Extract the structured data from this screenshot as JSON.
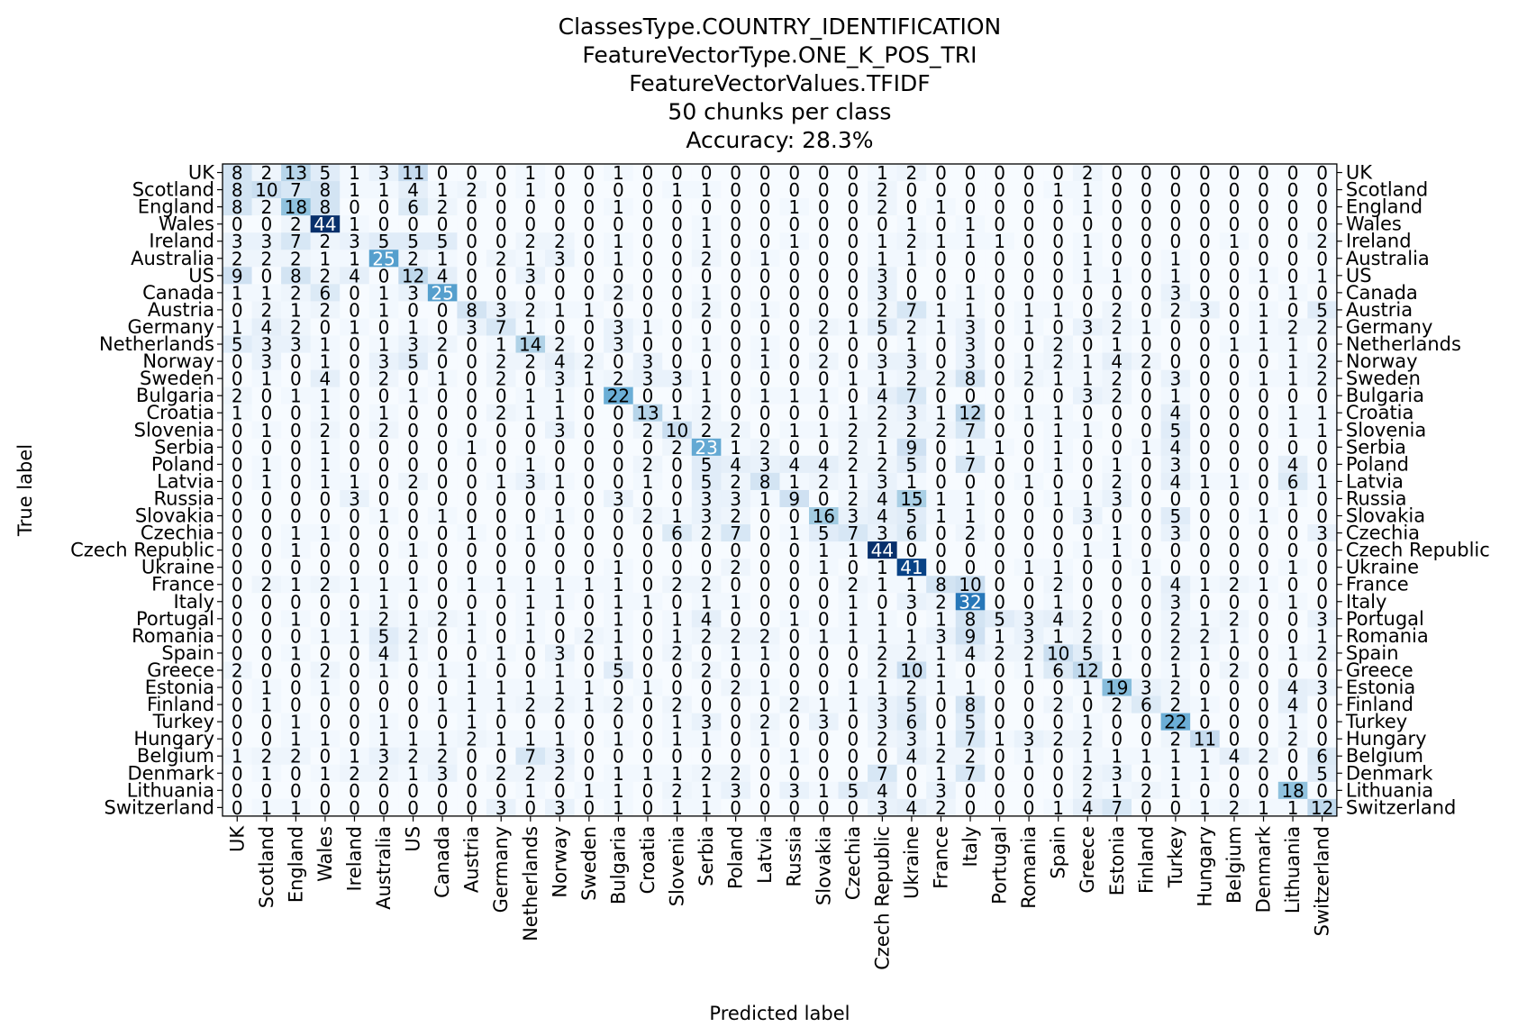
{
  "chart_data": {
    "type": "heatmap",
    "title": [
      "ClassesType.COUNTRY_IDENTIFICATION",
      "FeatureVectorType.ONE_K_POS_TRI",
      "FeatureVectorValues.TFIDF",
      "50 chunks per class",
      "Accuracy: 28.3%"
    ],
    "xlabel": "Predicted label",
    "ylabel": "True label",
    "colormap": "Blues",
    "vmin": 0,
    "vmax": 44,
    "labels": [
      "UK",
      "Scotland",
      "England",
      "Wales",
      "Ireland",
      "Australia",
      "US",
      "Canada",
      "Austria",
      "Germany",
      "Netherlands",
      "Norway",
      "Sweden",
      "Bulgaria",
      "Croatia",
      "Slovenia",
      "Serbia",
      "Poland",
      "Latvia",
      "Russia",
      "Slovakia",
      "Czechia",
      "Czech Republic",
      "Ukraine",
      "France",
      "Italy",
      "Portugal",
      "Romania",
      "Spain",
      "Greece",
      "Estonia",
      "Finland",
      "Turkey",
      "Hungary",
      "Belgium",
      "Denmark",
      "Lithuania",
      "Switzerland"
    ],
    "matrix": [
      [
        8,
        2,
        13,
        5,
        1,
        3,
        11,
        0,
        0,
        0,
        1,
        0,
        0,
        1,
        0,
        0,
        0,
        0,
        0,
        0,
        0,
        0,
        1,
        2,
        0,
        0,
        0,
        0,
        0,
        2,
        0,
        0,
        0,
        0,
        0,
        0,
        0,
        0
      ],
      [
        8,
        10,
        7,
        8,
        1,
        1,
        4,
        1,
        2,
        0,
        1,
        0,
        0,
        0,
        0,
        1,
        1,
        0,
        0,
        0,
        0,
        0,
        2,
        0,
        0,
        0,
        0,
        0,
        1,
        1,
        0,
        0,
        0,
        0,
        0,
        0,
        0,
        0
      ],
      [
        8,
        2,
        18,
        8,
        0,
        0,
        6,
        2,
        0,
        0,
        0,
        0,
        0,
        1,
        0,
        0,
        0,
        0,
        0,
        1,
        0,
        0,
        2,
        0,
        1,
        0,
        0,
        0,
        0,
        1,
        0,
        0,
        0,
        0,
        0,
        0,
        0,
        0
      ],
      [
        0,
        0,
        2,
        44,
        1,
        0,
        0,
        0,
        0,
        0,
        0,
        0,
        0,
        0,
        0,
        0,
        1,
        0,
        0,
        0,
        0,
        0,
        0,
        1,
        0,
        1,
        0,
        0,
        0,
        0,
        0,
        0,
        0,
        0,
        0,
        0,
        0,
        0
      ],
      [
        3,
        3,
        7,
        2,
        3,
        5,
        5,
        5,
        0,
        0,
        2,
        2,
        0,
        1,
        0,
        0,
        1,
        0,
        0,
        1,
        0,
        0,
        1,
        2,
        1,
        1,
        1,
        0,
        0,
        1,
        0,
        0,
        0,
        0,
        1,
        0,
        0,
        2
      ],
      [
        2,
        2,
        2,
        1,
        1,
        25,
        2,
        1,
        0,
        2,
        1,
        3,
        0,
        1,
        0,
        0,
        2,
        0,
        1,
        0,
        0,
        0,
        1,
        1,
        0,
        0,
        0,
        0,
        0,
        1,
        0,
        0,
        1,
        0,
        0,
        0,
        0,
        0
      ],
      [
        9,
        0,
        8,
        2,
        4,
        0,
        12,
        4,
        0,
        0,
        3,
        0,
        0,
        0,
        0,
        0,
        0,
        0,
        0,
        0,
        0,
        0,
        3,
        0,
        0,
        0,
        0,
        0,
        0,
        1,
        1,
        0,
        1,
        0,
        0,
        1,
        0,
        1
      ],
      [
        1,
        1,
        2,
        6,
        0,
        1,
        3,
        25,
        0,
        0,
        0,
        0,
        0,
        2,
        0,
        0,
        1,
        0,
        0,
        0,
        0,
        0,
        3,
        0,
        0,
        1,
        0,
        0,
        0,
        0,
        0,
        0,
        3,
        0,
        0,
        0,
        1,
        0
      ],
      [
        0,
        2,
        1,
        2,
        0,
        1,
        0,
        0,
        8,
        3,
        2,
        1,
        1,
        0,
        0,
        0,
        2,
        0,
        1,
        0,
        0,
        0,
        2,
        7,
        1,
        1,
        0,
        1,
        1,
        0,
        2,
        0,
        2,
        3,
        0,
        1,
        0,
        5
      ],
      [
        1,
        4,
        2,
        0,
        1,
        0,
        1,
        0,
        3,
        7,
        1,
        0,
        0,
        3,
        1,
        0,
        0,
        0,
        0,
        0,
        2,
        1,
        5,
        2,
        1,
        3,
        0,
        1,
        0,
        3,
        2,
        1,
        0,
        0,
        0,
        1,
        2,
        2
      ],
      [
        5,
        3,
        3,
        1,
        0,
        1,
        3,
        2,
        0,
        1,
        14,
        2,
        0,
        3,
        0,
        0,
        1,
        0,
        1,
        0,
        0,
        0,
        0,
        1,
        0,
        3,
        0,
        0,
        2,
        0,
        1,
        0,
        0,
        0,
        1,
        1,
        1,
        0
      ],
      [
        0,
        3,
        0,
        1,
        0,
        3,
        5,
        0,
        0,
        2,
        2,
        4,
        2,
        0,
        3,
        0,
        0,
        0,
        1,
        0,
        2,
        0,
        3,
        3,
        0,
        3,
        0,
        1,
        2,
        1,
        4,
        2,
        0,
        0,
        0,
        0,
        1,
        2
      ],
      [
        0,
        1,
        0,
        4,
        0,
        2,
        0,
        1,
        0,
        2,
        0,
        3,
        1,
        2,
        3,
        3,
        1,
        0,
        0,
        0,
        0,
        1,
        1,
        2,
        2,
        8,
        0,
        2,
        1,
        1,
        2,
        0,
        3,
        0,
        0,
        1,
        1,
        2
      ],
      [
        2,
        0,
        1,
        1,
        0,
        0,
        1,
        0,
        0,
        0,
        1,
        1,
        0,
        22,
        0,
        0,
        1,
        0,
        1,
        1,
        1,
        0,
        4,
        7,
        0,
        0,
        0,
        0,
        0,
        3,
        2,
        0,
        1,
        0,
        0,
        0,
        0,
        0
      ],
      [
        1,
        0,
        0,
        1,
        0,
        1,
        0,
        0,
        0,
        2,
        1,
        1,
        0,
        0,
        13,
        1,
        2,
        0,
        0,
        0,
        0,
        1,
        2,
        3,
        1,
        12,
        0,
        1,
        1,
        0,
        0,
        0,
        4,
        0,
        0,
        0,
        1,
        1
      ],
      [
        0,
        1,
        0,
        2,
        0,
        2,
        0,
        0,
        0,
        0,
        0,
        3,
        0,
        0,
        2,
        10,
        2,
        2,
        0,
        1,
        1,
        2,
        2,
        2,
        2,
        7,
        0,
        0,
        1,
        1,
        0,
        0,
        5,
        0,
        0,
        0,
        1,
        1
      ],
      [
        0,
        0,
        0,
        1,
        0,
        0,
        0,
        0,
        1,
        0,
        0,
        0,
        0,
        0,
        0,
        2,
        23,
        1,
        2,
        0,
        0,
        2,
        1,
        9,
        0,
        1,
        1,
        0,
        1,
        0,
        0,
        1,
        4,
        0,
        0,
        0,
        0,
        0
      ],
      [
        0,
        1,
        0,
        1,
        0,
        0,
        0,
        0,
        0,
        0,
        1,
        0,
        0,
        0,
        2,
        0,
        5,
        4,
        3,
        4,
        4,
        2,
        2,
        5,
        0,
        7,
        0,
        0,
        1,
        0,
        1,
        0,
        3,
        0,
        0,
        0,
        4,
        0
      ],
      [
        0,
        1,
        0,
        1,
        1,
        0,
        2,
        0,
        0,
        1,
        3,
        1,
        0,
        0,
        1,
        0,
        5,
        2,
        8,
        1,
        2,
        1,
        3,
        1,
        0,
        0,
        0,
        1,
        0,
        0,
        2,
        0,
        4,
        1,
        1,
        0,
        6,
        1
      ],
      [
        0,
        0,
        0,
        0,
        3,
        0,
        0,
        0,
        0,
        0,
        0,
        0,
        0,
        3,
        0,
        0,
        3,
        3,
        1,
        9,
        0,
        2,
        4,
        15,
        1,
        1,
        0,
        0,
        1,
        1,
        3,
        0,
        0,
        0,
        0,
        0,
        1,
        0
      ],
      [
        0,
        0,
        0,
        0,
        0,
        1,
        0,
        1,
        0,
        0,
        0,
        1,
        0,
        0,
        2,
        1,
        3,
        2,
        0,
        0,
        16,
        3,
        4,
        5,
        1,
        1,
        0,
        0,
        0,
        3,
        0,
        0,
        5,
        0,
        0,
        1,
        0,
        0
      ],
      [
        0,
        0,
        1,
        1,
        0,
        0,
        0,
        0,
        1,
        0,
        1,
        0,
        0,
        0,
        0,
        6,
        2,
        7,
        0,
        1,
        5,
        7,
        3,
        6,
        0,
        2,
        0,
        0,
        0,
        0,
        1,
        0,
        3,
        0,
        0,
        0,
        0,
        3
      ],
      [
        0,
        0,
        1,
        0,
        0,
        0,
        1,
        0,
        0,
        0,
        0,
        0,
        0,
        0,
        0,
        0,
        0,
        0,
        0,
        0,
        1,
        1,
        44,
        0,
        0,
        0,
        0,
        0,
        0,
        1,
        1,
        0,
        0,
        0,
        0,
        0,
        0,
        0
      ],
      [
        0,
        0,
        0,
        0,
        0,
        0,
        0,
        0,
        0,
        0,
        0,
        0,
        0,
        1,
        0,
        0,
        0,
        2,
        0,
        0,
        1,
        0,
        1,
        41,
        0,
        0,
        0,
        1,
        1,
        0,
        0,
        1,
        0,
        0,
        0,
        0,
        1,
        0
      ],
      [
        0,
        2,
        1,
        2,
        1,
        1,
        1,
        0,
        1,
        1,
        1,
        1,
        1,
        1,
        0,
        2,
        2,
        0,
        0,
        0,
        0,
        2,
        1,
        1,
        8,
        10,
        0,
        0,
        2,
        0,
        0,
        0,
        4,
        1,
        2,
        1,
        0,
        0
      ],
      [
        0,
        0,
        0,
        0,
        0,
        1,
        0,
        0,
        0,
        0,
        1,
        1,
        0,
        1,
        1,
        0,
        1,
        1,
        0,
        0,
        0,
        1,
        0,
        3,
        2,
        32,
        0,
        0,
        1,
        0,
        0,
        0,
        3,
        0,
        0,
        0,
        1,
        0
      ],
      [
        0,
        0,
        1,
        0,
        1,
        2,
        1,
        2,
        1,
        0,
        1,
        0,
        0,
        1,
        0,
        1,
        4,
        0,
        0,
        1,
        0,
        1,
        1,
        0,
        1,
        8,
        5,
        3,
        4,
        2,
        0,
        0,
        2,
        1,
        2,
        0,
        0,
        3
      ],
      [
        0,
        0,
        0,
        1,
        1,
        5,
        2,
        0,
        1,
        0,
        1,
        0,
        2,
        1,
        0,
        1,
        2,
        2,
        2,
        0,
        1,
        1,
        1,
        1,
        3,
        9,
        1,
        3,
        1,
        2,
        0,
        0,
        2,
        2,
        1,
        0,
        0,
        1
      ],
      [
        0,
        0,
        1,
        0,
        0,
        4,
        1,
        0,
        0,
        1,
        0,
        3,
        0,
        1,
        0,
        2,
        0,
        1,
        1,
        0,
        0,
        0,
        2,
        2,
        1,
        4,
        2,
        2,
        10,
        5,
        1,
        0,
        2,
        1,
        0,
        0,
        1,
        2
      ],
      [
        2,
        0,
        0,
        2,
        0,
        1,
        0,
        1,
        1,
        0,
        0,
        1,
        0,
        5,
        0,
        0,
        2,
        0,
        0,
        0,
        0,
        0,
        2,
        10,
        1,
        0,
        0,
        1,
        6,
        12,
        0,
        0,
        1,
        0,
        2,
        0,
        0,
        0
      ],
      [
        0,
        1,
        0,
        1,
        0,
        0,
        0,
        0,
        1,
        1,
        1,
        1,
        1,
        0,
        1,
        0,
        0,
        2,
        1,
        0,
        0,
        1,
        1,
        2,
        1,
        1,
        0,
        0,
        0,
        1,
        19,
        3,
        2,
        0,
        0,
        0,
        4,
        3
      ],
      [
        0,
        1,
        0,
        0,
        0,
        0,
        0,
        1,
        1,
        1,
        2,
        2,
        1,
        2,
        0,
        2,
        0,
        0,
        0,
        2,
        1,
        1,
        3,
        5,
        0,
        8,
        0,
        0,
        2,
        0,
        2,
        6,
        2,
        1,
        0,
        0,
        4,
        0
      ],
      [
        0,
        0,
        1,
        0,
        0,
        1,
        0,
        0,
        1,
        0,
        0,
        0,
        0,
        0,
        0,
        1,
        3,
        0,
        2,
        0,
        3,
        0,
        3,
        6,
        0,
        5,
        0,
        0,
        0,
        1,
        0,
        0,
        22,
        0,
        0,
        0,
        1,
        0
      ],
      [
        0,
        0,
        1,
        1,
        0,
        1,
        1,
        1,
        2,
        1,
        1,
        1,
        0,
        1,
        0,
        1,
        1,
        0,
        1,
        0,
        0,
        0,
        2,
        3,
        1,
        7,
        1,
        3,
        2,
        2,
        0,
        0,
        2,
        11,
        0,
        0,
        2,
        0
      ],
      [
        1,
        2,
        2,
        0,
        1,
        3,
        2,
        2,
        0,
        0,
        7,
        3,
        0,
        0,
        0,
        0,
        0,
        0,
        0,
        1,
        0,
        0,
        0,
        4,
        2,
        2,
        0,
        1,
        0,
        1,
        1,
        1,
        1,
        1,
        4,
        2,
        0,
        6
      ],
      [
        0,
        1,
        0,
        1,
        2,
        2,
        1,
        3,
        0,
        2,
        2,
        2,
        0,
        1,
        1,
        1,
        2,
        2,
        0,
        0,
        0,
        0,
        7,
        0,
        1,
        7,
        0,
        0,
        0,
        2,
        3,
        0,
        1,
        1,
        0,
        0,
        0,
        5
      ],
      [
        0,
        0,
        0,
        0,
        0,
        0,
        0,
        0,
        0,
        0,
        1,
        0,
        1,
        1,
        0,
        2,
        1,
        3,
        0,
        3,
        1,
        5,
        4,
        0,
        3,
        0,
        0,
        0,
        0,
        2,
        1,
        2,
        1,
        0,
        0,
        0,
        18,
        0
      ],
      [
        0,
        1,
        1,
        0,
        0,
        0,
        0,
        0,
        0,
        3,
        0,
        3,
        0,
        1,
        0,
        1,
        1,
        0,
        0,
        0,
        0,
        0,
        3,
        4,
        2,
        0,
        0,
        0,
        1,
        4,
        7,
        0,
        0,
        1,
        2,
        1,
        1,
        12
      ]
    ]
  }
}
